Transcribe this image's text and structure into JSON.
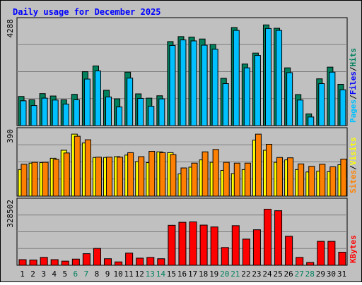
{
  "title": "Daily usage for December 2025",
  "colors": {
    "background": "#c0c0c0",
    "title": "#0000ff",
    "hits": "#00805c",
    "files": "#0000ff",
    "pages": "#00c0ff",
    "visits": "#ffff00",
    "sites": "#ff8000",
    "kbytes": "#ff0000",
    "weekend_label": "#00805c",
    "weekday_label": "#000000"
  },
  "chart_data": [
    {
      "type": "bar",
      "panel": "hits-files-pages",
      "max_label": "4288",
      "ylim": [
        0,
        4288
      ],
      "legend": [
        "Pages",
        "/",
        "Files",
        "/",
        "Hits"
      ],
      "categories": [
        "1",
        "2",
        "3",
        "4",
        "5",
        "6",
        "7",
        "8",
        "9",
        "10",
        "11",
        "12",
        "13",
        "14",
        "15",
        "16",
        "17",
        "18",
        "19",
        "20",
        "21",
        "22",
        "23",
        "24",
        "25",
        "26",
        "27",
        "28",
        "29",
        "30",
        "31"
      ],
      "series": [
        {
          "name": "Hits",
          "values": [
            1220,
            1080,
            1340,
            1240,
            1080,
            1310,
            2260,
            2500,
            1480,
            1120,
            2240,
            1330,
            1150,
            1250,
            3520,
            3730,
            3710,
            3630,
            3400,
            1980,
            4110,
            2580,
            3040,
            4220,
            4080,
            2420,
            1300,
            490,
            1960,
            2450,
            1730
          ]
        },
        {
          "name": "Pages",
          "values": [
            1040,
            840,
            1150,
            1070,
            900,
            1080,
            1950,
            2290,
            1200,
            780,
            1990,
            1140,
            810,
            1120,
            3360,
            3590,
            3550,
            3370,
            3200,
            1760,
            3990,
            2420,
            2940,
            4070,
            3990,
            2220,
            1070,
            360,
            1760,
            2240,
            1500
          ]
        }
      ]
    },
    {
      "type": "bar",
      "panel": "visits-sites",
      "max_label": "390",
      "ylim": [
        0,
        390
      ],
      "legend": [
        "Sites",
        "/",
        "Visits"
      ],
      "categories": [
        "1",
        "2",
        "3",
        "4",
        "5",
        "6",
        "7",
        "8",
        "9",
        "10",
        "11",
        "12",
        "13",
        "14",
        "15",
        "16",
        "17",
        "18",
        "19",
        "20",
        "21",
        "22",
        "23",
        "24",
        "25",
        "26",
        "27",
        "28",
        "29",
        "30",
        "31"
      ],
      "series": [
        {
          "name": "Visits",
          "values": [
            165,
            205,
            208,
            235,
            285,
            385,
            330,
            240,
            240,
            245,
            255,
            215,
            208,
            275,
            270,
            138,
            180,
            225,
            210,
            160,
            140,
            165,
            348,
            285,
            210,
            225,
            165,
            150,
            155,
            152,
            195
          ]
        },
        {
          "name": "Sites",
          "values": [
            198,
            210,
            210,
            228,
            268,
            372,
            350,
            242,
            242,
            242,
            270,
            245,
            278,
            270,
            258,
            175,
            205,
            275,
            290,
            210,
            205,
            205,
            385,
            322,
            240,
            238,
            200,
            185,
            198,
            182,
            230
          ]
        }
      ]
    },
    {
      "type": "bar",
      "panel": "kbytes",
      "max_label": "328502",
      "ylim": [
        0,
        328502
      ],
      "legend": [
        "KBytes"
      ],
      "categories": [
        "1",
        "2",
        "3",
        "4",
        "5",
        "6",
        "7",
        "8",
        "9",
        "10",
        "11",
        "12",
        "13",
        "14",
        "15",
        "16",
        "17",
        "18",
        "19",
        "20",
        "21",
        "22",
        "23",
        "24",
        "25",
        "26",
        "27",
        "28",
        "29",
        "30",
        "31"
      ],
      "series": [
        {
          "name": "KBytes",
          "values": [
            30000,
            28000,
            42000,
            30000,
            22000,
            33000,
            62000,
            90000,
            35000,
            18000,
            65000,
            38000,
            42000,
            35000,
            214000,
            230000,
            232000,
            215000,
            205000,
            95000,
            212000,
            140000,
            190000,
            300000,
            292000,
            155000,
            42000,
            15000,
            128000,
            128000,
            70000
          ]
        }
      ]
    }
  ],
  "x_labels": {
    "days": [
      "1",
      "2",
      "3",
      "4",
      "5",
      "6",
      "7",
      "8",
      "9",
      "10",
      "11",
      "12",
      "13",
      "14",
      "15",
      "16",
      "17",
      "18",
      "19",
      "20",
      "21",
      "22",
      "23",
      "24",
      "25",
      "26",
      "27",
      "28",
      "29",
      "30",
      "31"
    ],
    "weekend": [
      6,
      7,
      13,
      14,
      20,
      21,
      27,
      28
    ]
  }
}
